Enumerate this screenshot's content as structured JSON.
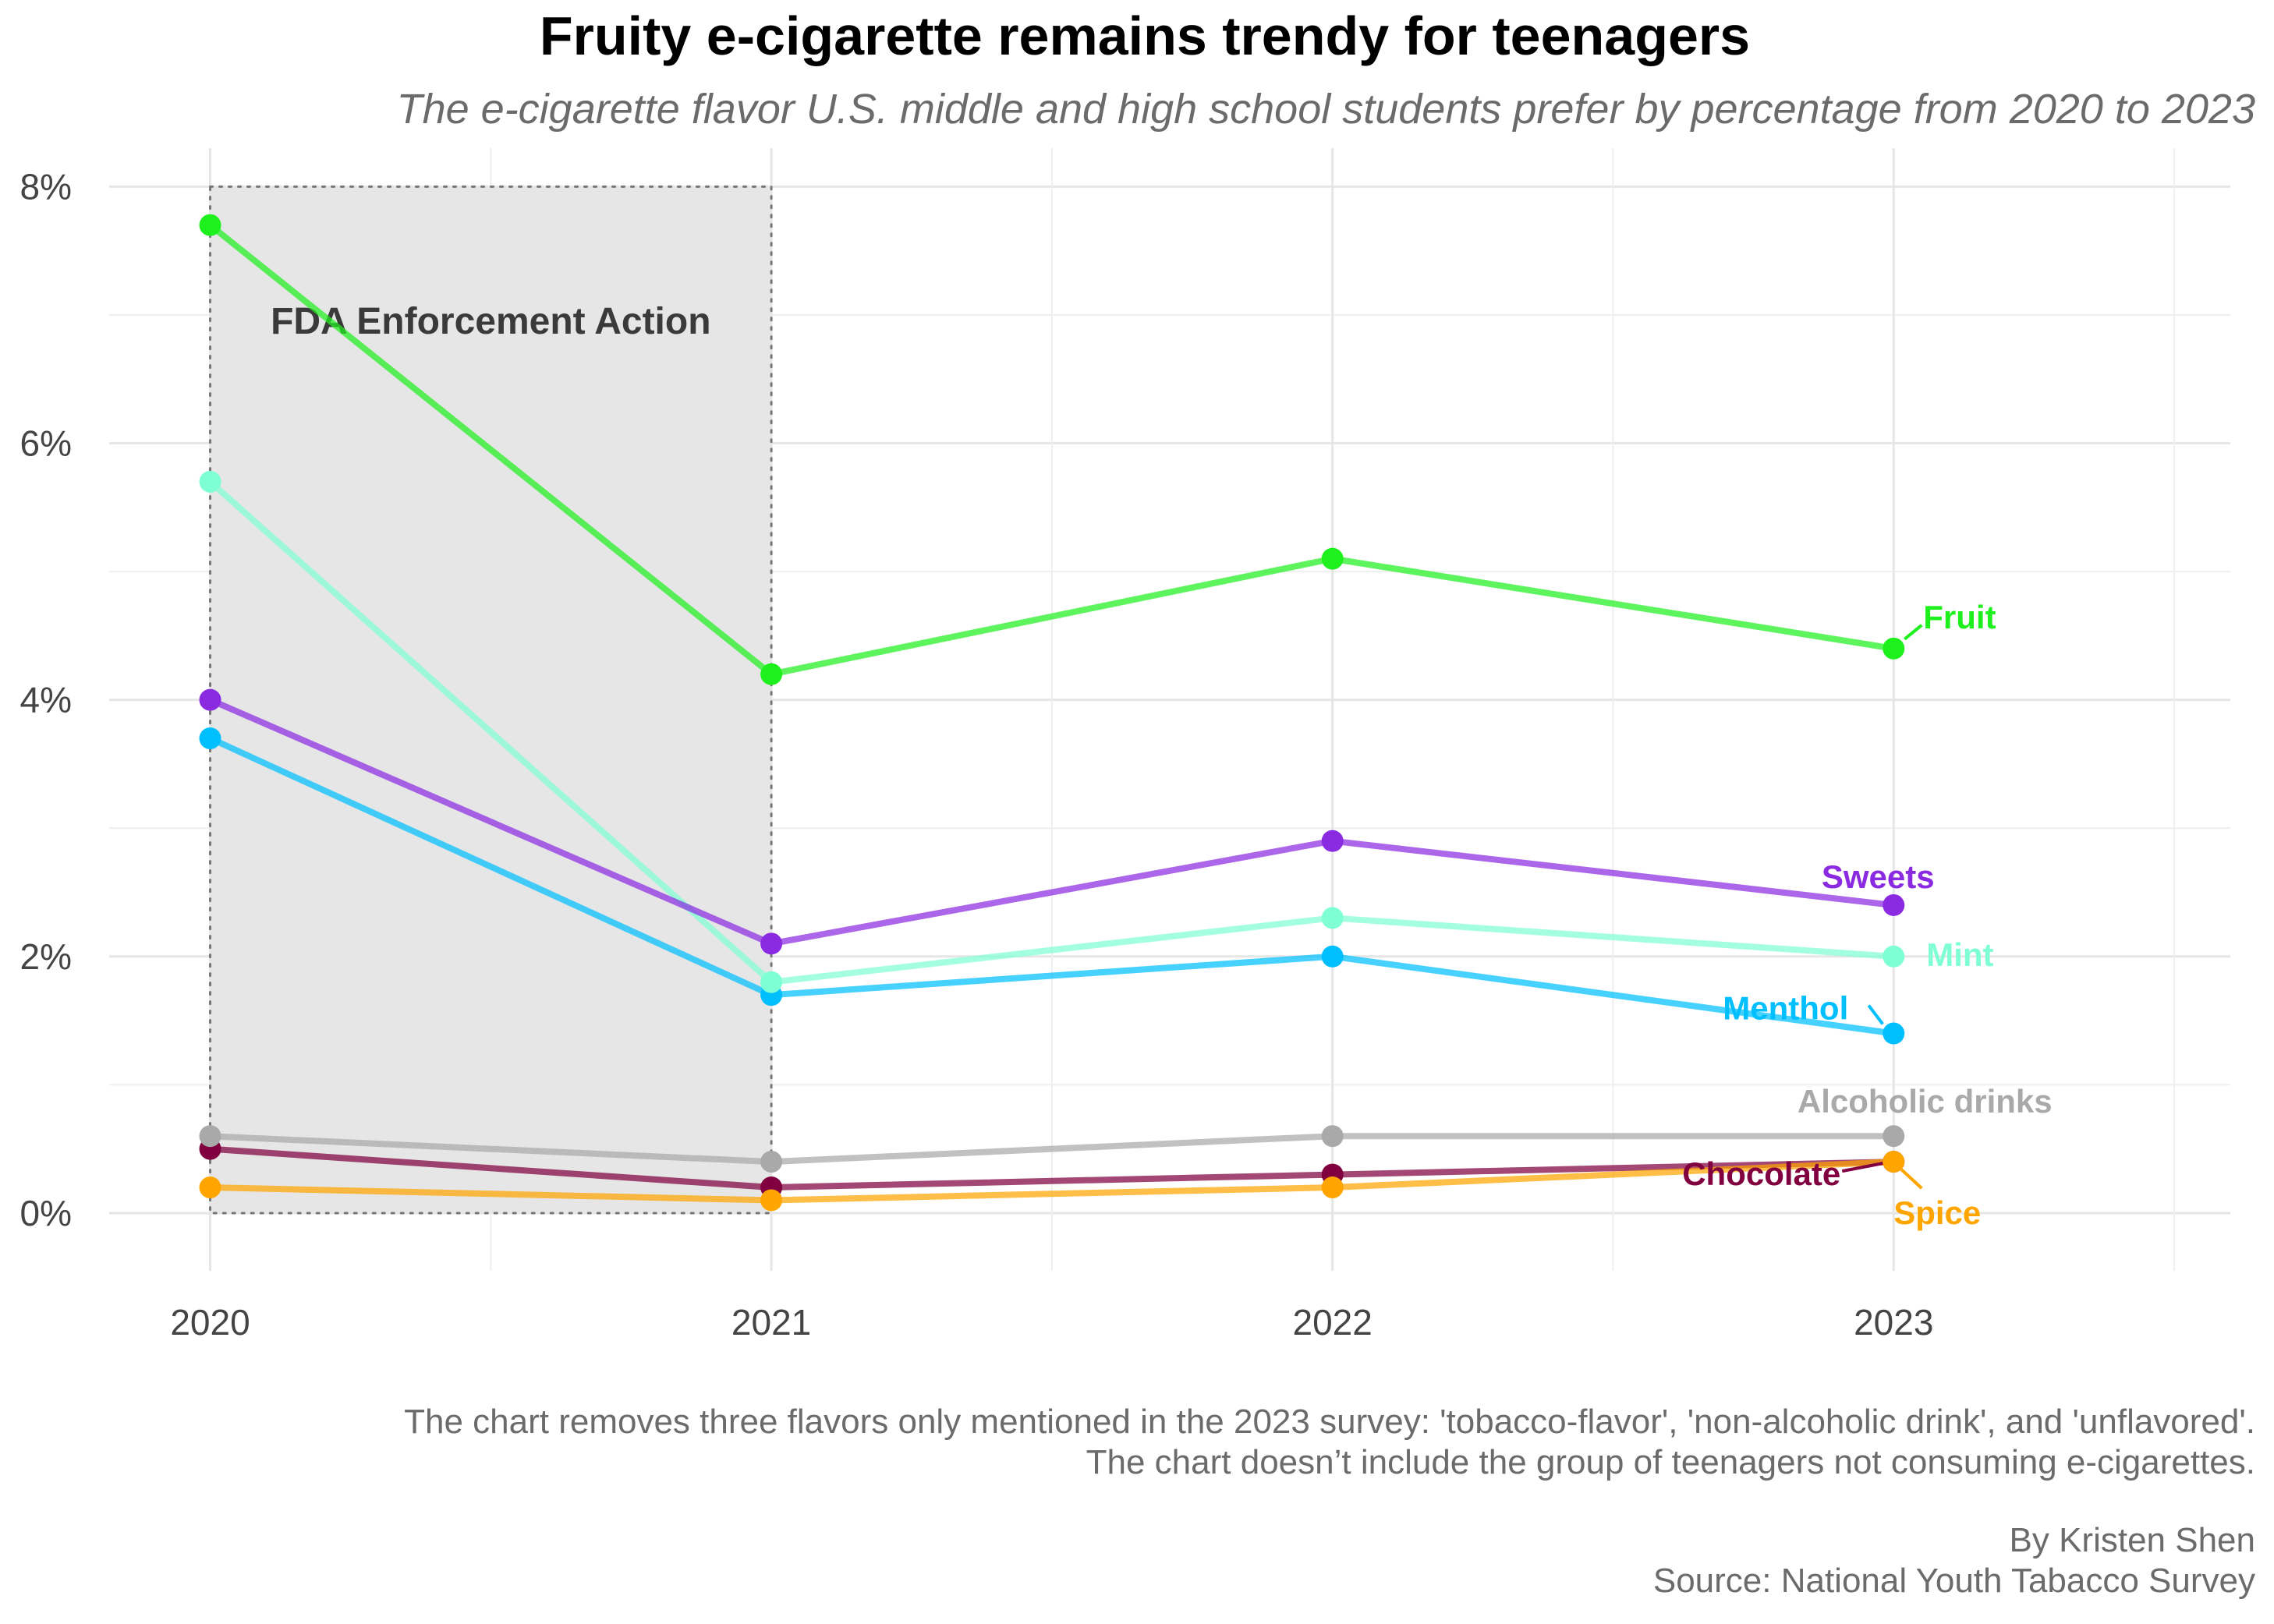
{
  "chart_data": {
    "type": "line",
    "title": "Fruity e-cigarette remains trendy for teenagers",
    "subtitle": "The e-cigarette flavor U.S. middle and high school students prefer by percentage from 2020 to 2023",
    "x": [
      2020,
      2021,
      2022,
      2023
    ],
    "x_tick_labels": [
      "2020",
      "2021",
      "2022",
      "2023"
    ],
    "y_tick_labels": [
      "0%",
      "2%",
      "4%",
      "6%",
      "8%"
    ],
    "y_ticks": [
      0,
      2,
      4,
      6,
      8
    ],
    "ylim": [
      -0.45,
      8.3
    ],
    "xlim": [
      2019.82,
      2023.6
    ],
    "grid": true,
    "legend": "direct labels at line ends",
    "series": [
      {
        "name": "Fruit",
        "values": [
          7.7,
          4.2,
          5.1,
          4.4
        ],
        "color": "#1ef01e"
      },
      {
        "name": "Sweets",
        "values": [
          4.0,
          2.1,
          2.9,
          2.4
        ],
        "color": "#8a2be2"
      },
      {
        "name": "Mint",
        "values": [
          5.7,
          1.8,
          2.3,
          2.0
        ],
        "color": "#7fffd4"
      },
      {
        "name": "Menthol",
        "values": [
          3.7,
          1.7,
          2.0,
          1.4
        ],
        "color": "#00bfff"
      },
      {
        "name": "Alcoholic drinks",
        "values": [
          0.6,
          0.4,
          0.6,
          0.6
        ],
        "color": "#a9a9a9"
      },
      {
        "name": "Chocolate",
        "values": [
          0.5,
          0.2,
          0.3,
          0.4
        ],
        "color": "#800040"
      },
      {
        "name": "Spice",
        "values": [
          0.2,
          0.1,
          0.2,
          0.4
        ],
        "color": "#ffa500"
      }
    ],
    "annotations": [
      {
        "text": "FDA Enforcement Action",
        "x_range": [
          2020,
          2021
        ],
        "y_range": [
          0,
          8
        ]
      }
    ],
    "caption": [
      "The chart removes three flavors only mentioned in the 2023 survey: 'tobacco-flavor', 'non-alcoholic drink', and 'unflavored'.",
      "The chart doesn’t include the group of teenagers not consuming e-cigarettes."
    ],
    "credit": [
      "By Kristen Shen",
      "Source: National Youth Tabacco Survey"
    ]
  }
}
